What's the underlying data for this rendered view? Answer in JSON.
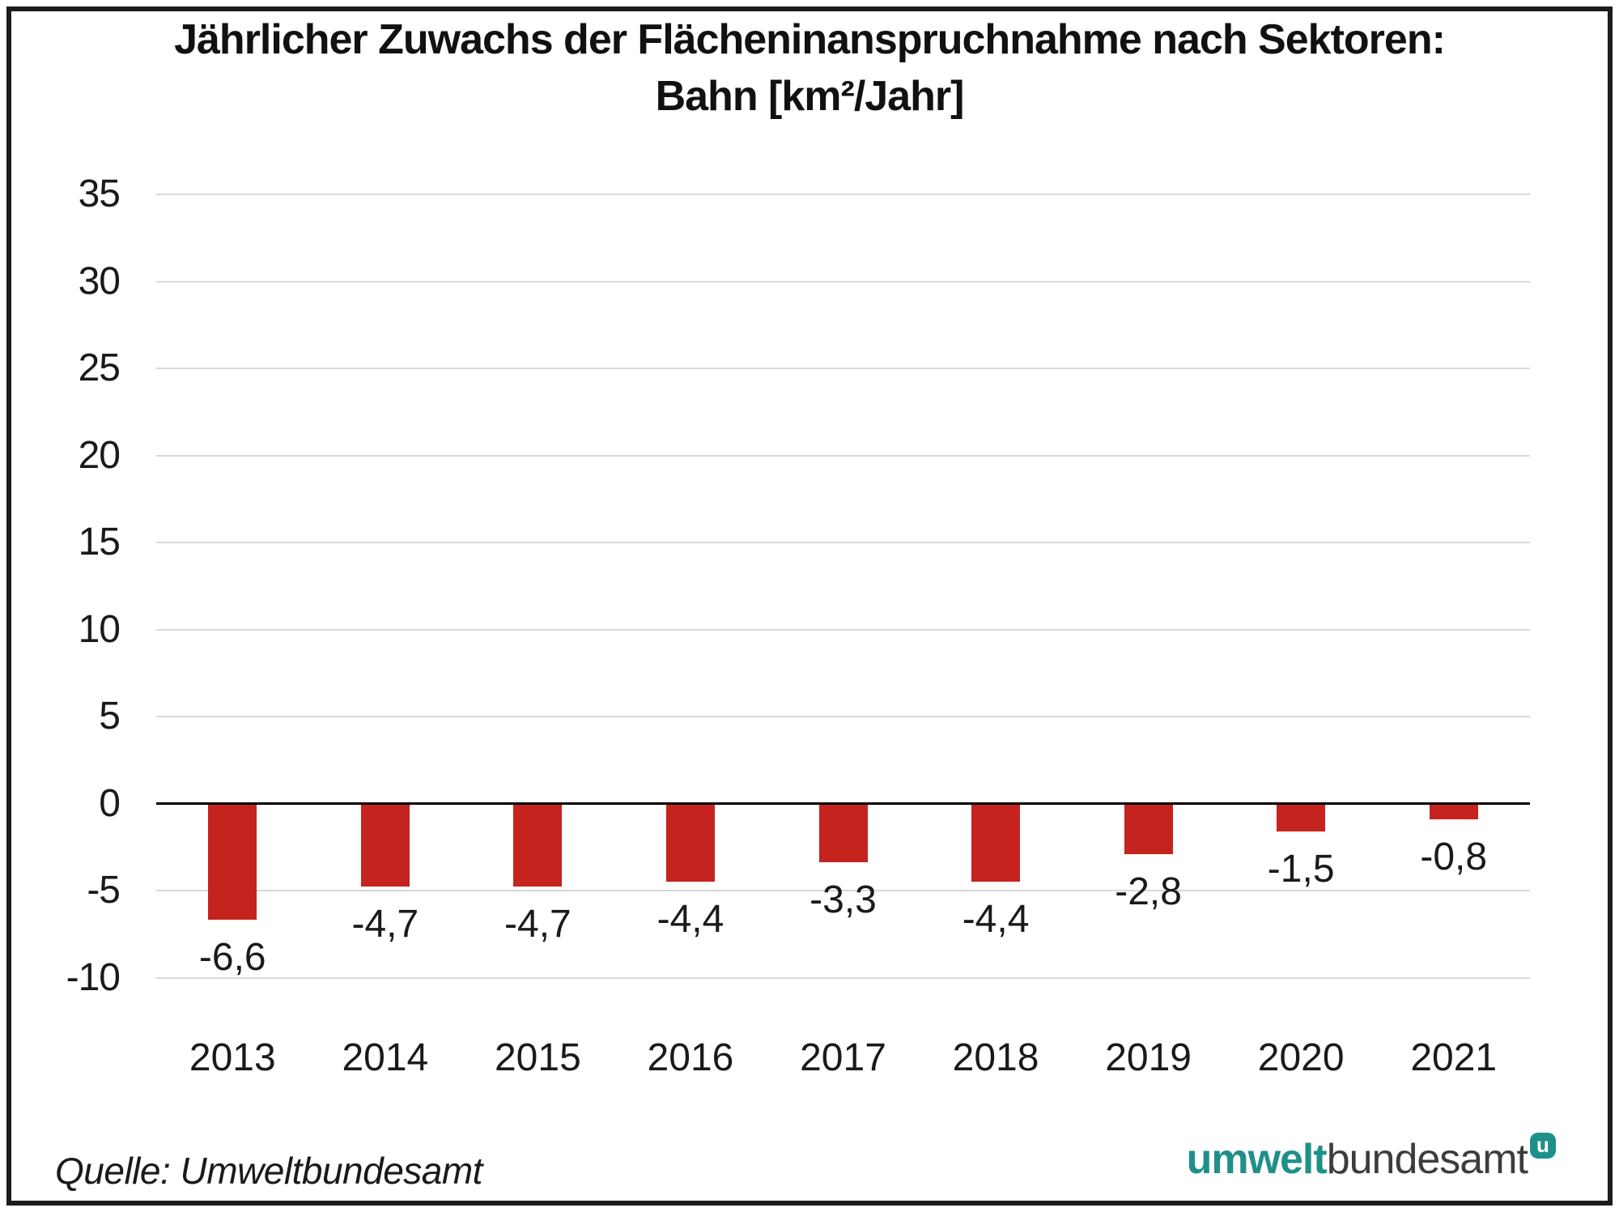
{
  "header": {
    "title_line1": "Jährlicher Zuwachs der Flächeninanspruchnahme nach Sektoren:",
    "title_line2": "Bahn [km²/Jahr]"
  },
  "chart_data": {
    "type": "bar",
    "title": "Jährlicher Zuwachs der Flächeninanspruchnahme nach Sektoren: Bahn [km²/Jahr]",
    "categories": [
      "2013",
      "2014",
      "2015",
      "2016",
      "2017",
      "2018",
      "2019",
      "2020",
      "2021"
    ],
    "values": [
      -6.6,
      -4.7,
      -4.7,
      -4.4,
      -3.3,
      -4.4,
      -2.8,
      -1.5,
      -0.8
    ],
    "value_labels": [
      "-6,6",
      "-4,7",
      "-4,7",
      "-4,4",
      "-3,3",
      "-4,4",
      "-2,8",
      "-1,5",
      "-0,8"
    ],
    "xlabel": "",
    "ylabel": "",
    "ylim": [
      -10,
      35
    ],
    "yticks": [
      35,
      30,
      25,
      20,
      15,
      10,
      5,
      0,
      -5,
      -10
    ],
    "grid": true,
    "legend": null,
    "bar_color": "#c5231e"
  },
  "footer": {
    "source": "Quelle: Umweltbundesamt",
    "logo": {
      "part1": "umwelt",
      "part2": "bundesamt",
      "badge": "u"
    }
  },
  "colors": {
    "bar_red": "#c5231e",
    "gridline": "#d9d9d9",
    "axis": "#000000",
    "logo_teal": "#1f9089",
    "logo_gray": "#3c3c3c",
    "text": "#1a1a1a"
  }
}
